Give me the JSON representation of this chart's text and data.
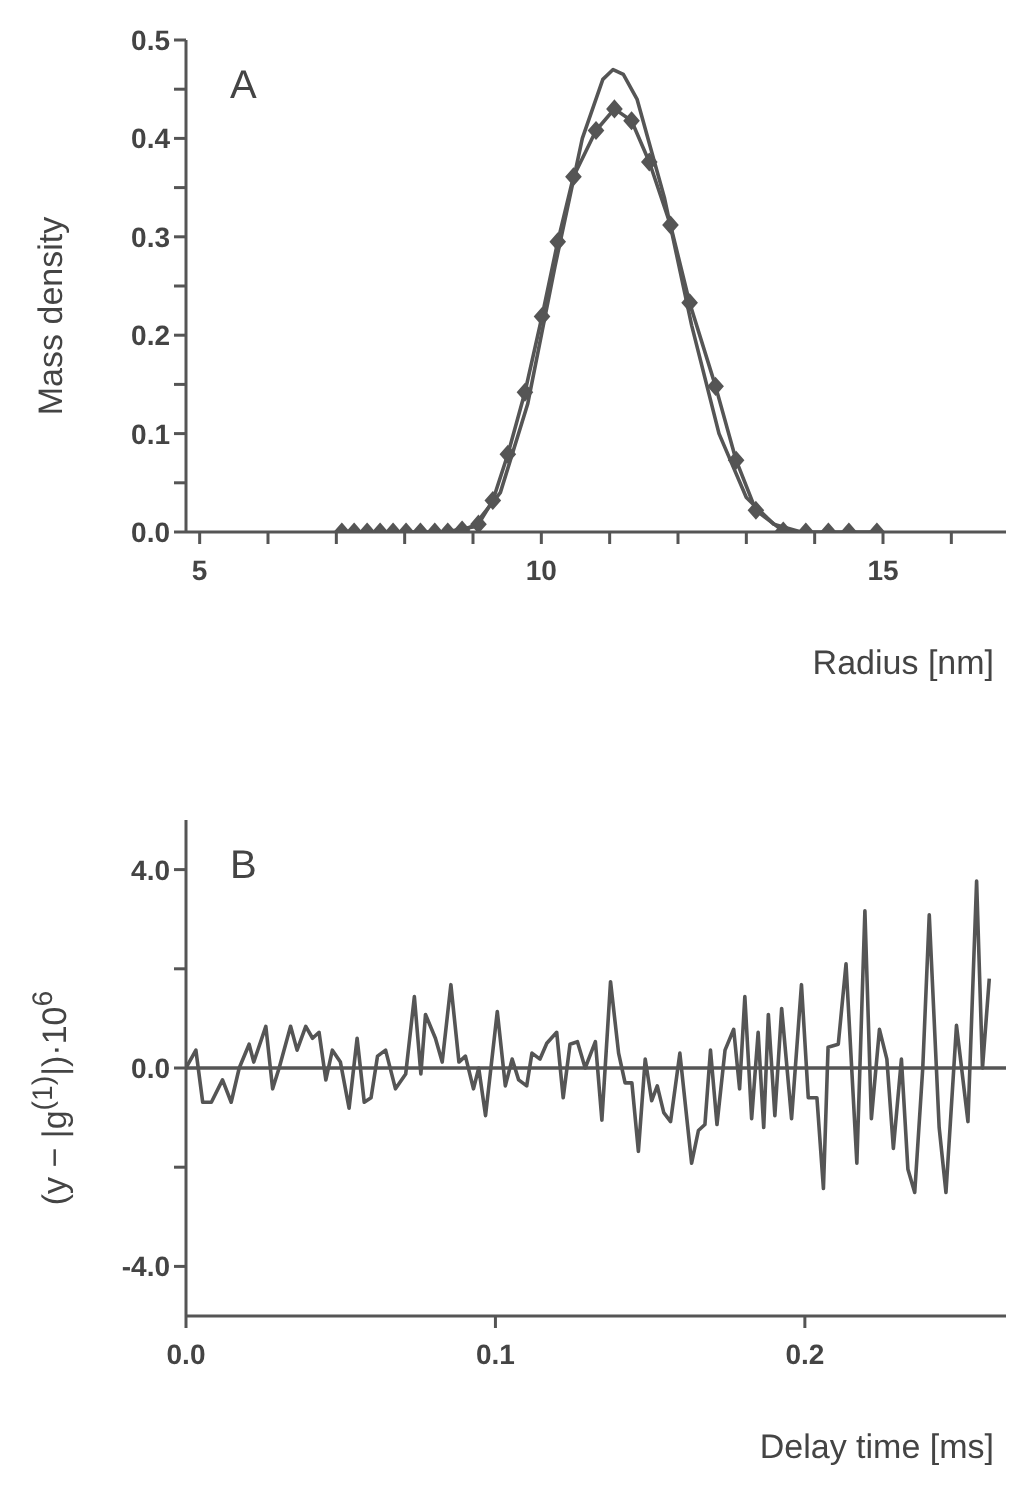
{
  "chart_data": [
    {
      "type": "line",
      "xlabel": "Radius [nm]",
      "ylabel": "Mass density",
      "annotations": [
        "A"
      ],
      "xlim": [
        4.8,
        16.8
      ],
      "ylim": [
        0,
        0.5
      ],
      "xticks": [
        5,
        {
          "value": 6,
          "label": null
        },
        {
          "value": 7,
          "label": null
        },
        {
          "value": 8,
          "label": null
        },
        {
          "value": 9,
          "label": null
        },
        10,
        {
          "value": 11,
          "label": null
        },
        {
          "value": 12,
          "label": null
        },
        {
          "value": 13,
          "label": null
        },
        {
          "value": 14,
          "label": null
        },
        15,
        {
          "value": 16,
          "label": null
        }
      ],
      "yticks": [
        {
          "value": 0,
          "label": "0.0"
        },
        {
          "value": 0.05,
          "label": null
        },
        {
          "value": 0.1,
          "label": "0.1"
        },
        {
          "value": 0.15,
          "label": null
        },
        {
          "value": 0.2,
          "label": "0.2"
        },
        {
          "value": 0.25,
          "label": null
        },
        {
          "value": 0.3,
          "label": "0.3"
        },
        {
          "value": 0.35,
          "label": null
        },
        {
          "value": 0.4,
          "label": "0.4"
        },
        {
          "value": 0.45,
          "label": null
        },
        {
          "value": 0.5,
          "label": "0.5"
        }
      ],
      "series": [
        {
          "color": "#555555",
          "marker": "diamond",
          "x": [
            7.08,
            7.26,
            7.45,
            7.64,
            7.83,
            8.02,
            8.23,
            8.44,
            8.63,
            8.84,
            9.08,
            9.29,
            9.51,
            9.76,
            10.01,
            10.24,
            10.47,
            10.8,
            11.07,
            11.32,
            11.58,
            11.89,
            12.17,
            12.55,
            12.85,
            13.14,
            13.54,
            13.87,
            14.2,
            14.5,
            14.91
          ],
          "values": [
            0,
            0,
            0,
            0,
            0,
            0,
            0,
            0,
            0,
            0.002,
            0.008,
            0.032,
            0.079,
            0.142,
            0.219,
            0.295,
            0.361,
            0.408,
            0.43,
            0.418,
            0.376,
            0.312,
            0.233,
            0.148,
            0.073,
            0.022,
            0.001,
            0,
            0,
            0,
            0
          ]
        },
        {
          "color": "#555555",
          "marker": "none",
          "x": [
            8.6,
            9.0,
            9.4,
            9.8,
            10.2,
            10.6,
            10.9,
            11.05,
            11.2,
            11.4,
            11.8,
            12.2,
            12.6,
            13.0,
            13.4,
            13.8
          ],
          "values": [
            0,
            0.005,
            0.04,
            0.13,
            0.27,
            0.4,
            0.46,
            0.47,
            0.465,
            0.44,
            0.34,
            0.21,
            0.1,
            0.035,
            0.008,
            0
          ]
        }
      ]
    },
    {
      "type": "line",
      "xlabel": "Delay time [ms]",
      "ylabel": "(y − |g$^{(1)}$|)·10$^{6}$",
      "annotations": [
        "B"
      ],
      "xlim": [
        0,
        0.265
      ],
      "ylim": [
        -5,
        5
      ],
      "xticks": [
        {
          "value": 0,
          "label": "0.0"
        },
        0.1,
        0.2
      ],
      "yticks": [
        {
          "value": -4,
          "label": "-4.0"
        },
        {
          "value": -2,
          "label": null
        },
        {
          "value": 0,
          "label": "0.0"
        },
        {
          "value": 2,
          "label": null
        },
        {
          "value": 4,
          "label": "4.0"
        }
      ],
      "ref_lines": [
        {
          "axis": "y",
          "value": 0,
          "color": "#555555"
        }
      ],
      "series": [
        {
          "color": "#555555",
          "marker": "none",
          "x": [
            0,
            0.0032,
            0.0054,
            0.0082,
            0.0118,
            0.0146,
            0.0172,
            0.0204,
            0.0219,
            0.0258,
            0.028,
            0.0301,
            0.0338,
            0.0359,
            0.0387,
            0.0409,
            0.043,
            0.0452,
            0.0473,
            0.0499,
            0.0527,
            0.0553,
            0.0576,
            0.0598,
            0.0619,
            0.0645,
            0.0677,
            0.071,
            0.0738,
            0.0759,
            0.0774,
            0.0806,
            0.0828,
            0.0856,
            0.0882,
            0.0903,
            0.0929,
            0.0946,
            0.0968,
            0.1006,
            0.1032,
            0.1054,
            0.1075,
            0.1101,
            0.1118,
            0.1144,
            0.1166,
            0.1198,
            0.1219,
            0.1241,
            0.1265,
            0.129,
            0.1323,
            0.1344,
            0.1372,
            0.1398,
            0.1419,
            0.1441,
            0.1462,
            0.1484,
            0.1505,
            0.1523,
            0.1544,
            0.1566,
            0.1596,
            0.1634,
            0.1656,
            0.1677,
            0.1695,
            0.1716,
            0.1742,
            0.177,
            0.1789,
            0.1806,
            0.1828,
            0.1849,
            0.1867,
            0.1882,
            0.1903,
            0.1925,
            0.1957,
            0.1989,
            0.2011,
            0.2039,
            0.206,
            0.2075,
            0.2108,
            0.2133,
            0.2168,
            0.2194,
            0.2215,
            0.2241,
            0.2265,
            0.2286,
            0.2312,
            0.2333,
            0.2355,
            0.2381,
            0.2402,
            0.2434,
            0.2456,
            0.249,
            0.2527,
            0.2555,
            0.2574,
            0.2596
          ],
          "values": [
            0,
            0.36,
            -0.69,
            -0.69,
            -0.24,
            -0.69,
            0,
            0.48,
            0.12,
            0.84,
            -0.42,
            0,
            0.84,
            0.36,
            0.84,
            0.6,
            0.72,
            -0.24,
            0.36,
            0.12,
            -0.81,
            0.6,
            -0.69,
            -0.6,
            0.24,
            0.36,
            -0.42,
            -0.12,
            1.44,
            -0.12,
            1.08,
            0.6,
            0.12,
            1.68,
            0.12,
            0.24,
            -0.42,
            0,
            -0.96,
            1.14,
            -0.36,
            0.18,
            -0.24,
            -0.36,
            0.3,
            0.18,
            0.5,
            0.72,
            -0.6,
            0.48,
            0.53,
            0,
            0.53,
            -1.05,
            1.74,
            0.3,
            -0.3,
            -0.3,
            -1.68,
            0.18,
            -0.66,
            -0.36,
            -0.9,
            -1.08,
            0.3,
            -1.92,
            -1.26,
            -1.14,
            0.36,
            -1.14,
            0.36,
            0.78,
            -0.42,
            1.44,
            -1.02,
            0.72,
            -1.2,
            1.08,
            -0.96,
            1.2,
            -1.02,
            1.68,
            -0.6,
            -0.6,
            -2.43,
            0.42,
            0.48,
            2.1,
            -1.92,
            3.17,
            -1.02,
            0.78,
            0.18,
            -1.62,
            0.18,
            -2.04,
            -2.51,
            0,
            3.09,
            -1.2,
            -2.51,
            0.86,
            -1.08,
            3.77,
            0,
            1.8
          ]
        }
      ]
    }
  ]
}
